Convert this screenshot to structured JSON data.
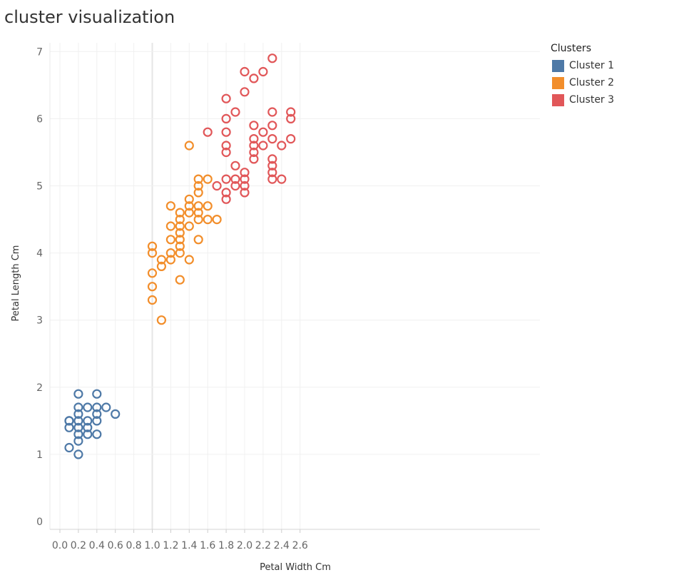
{
  "chart_data": {
    "type": "scatter",
    "title": "cluster visualization",
    "xlabel": "Petal Width Cm",
    "ylabel": "Petal Length Cm",
    "xlim": [
      -0.05,
      2.65
    ],
    "ylim": [
      -0.05,
      7.3
    ],
    "xticks": [
      "0.0",
      "0.2",
      "0.4",
      "0.6",
      "0.8",
      "1.0",
      "1.2",
      "1.4",
      "1.6",
      "1.8",
      "2.0",
      "2.2",
      "2.4",
      "2.6"
    ],
    "xtick_values": [
      0.0,
      0.2,
      0.4,
      0.6,
      0.8,
      1.0,
      1.2,
      1.4,
      1.6,
      1.8,
      2.0,
      2.2,
      2.4,
      2.6
    ],
    "yticks": [
      "0",
      "1",
      "2",
      "3",
      "4",
      "5",
      "6",
      "7"
    ],
    "ytick_values": [
      0,
      1,
      2,
      3,
      4,
      5,
      6,
      7
    ],
    "grid": true,
    "marker": "hollow-circle",
    "legend_title": "Clusters",
    "legend_position": "top-right",
    "series": [
      {
        "name": "Cluster 1",
        "color": "#4e79a7",
        "points": [
          [
            0.1,
            1.5
          ],
          [
            0.1,
            1.4
          ],
          [
            0.1,
            1.1
          ],
          [
            0.1,
            1.5
          ],
          [
            0.2,
            1.9
          ],
          [
            0.2,
            1.7
          ],
          [
            0.2,
            1.6
          ],
          [
            0.2,
            1.5
          ],
          [
            0.2,
            1.4
          ],
          [
            0.2,
            1.3
          ],
          [
            0.2,
            1.2
          ],
          [
            0.2,
            1.0
          ],
          [
            0.3,
            1.7
          ],
          [
            0.3,
            1.5
          ],
          [
            0.3,
            1.4
          ],
          [
            0.3,
            1.3
          ],
          [
            0.4,
            1.9
          ],
          [
            0.4,
            1.7
          ],
          [
            0.4,
            1.6
          ],
          [
            0.4,
            1.5
          ],
          [
            0.4,
            1.3
          ],
          [
            0.5,
            1.7
          ],
          [
            0.6,
            1.6
          ]
        ]
      },
      {
        "name": "Cluster 2",
        "color": "#f28e2b",
        "points": [
          [
            1.0,
            4.1
          ],
          [
            1.0,
            4.0
          ],
          [
            1.0,
            3.7
          ],
          [
            1.0,
            3.5
          ],
          [
            1.0,
            3.3
          ],
          [
            1.1,
            3.9
          ],
          [
            1.1,
            3.8
          ],
          [
            1.1,
            3.0
          ],
          [
            1.2,
            4.7
          ],
          [
            1.2,
            4.4
          ],
          [
            1.2,
            4.2
          ],
          [
            1.2,
            4.0
          ],
          [
            1.2,
            3.9
          ],
          [
            1.3,
            4.6
          ],
          [
            1.3,
            4.5
          ],
          [
            1.3,
            4.4
          ],
          [
            1.3,
            4.3
          ],
          [
            1.3,
            4.2
          ],
          [
            1.3,
            4.1
          ],
          [
            1.3,
            4.0
          ],
          [
            1.3,
            3.6
          ],
          [
            1.4,
            5.6
          ],
          [
            1.4,
            4.8
          ],
          [
            1.4,
            4.7
          ],
          [
            1.4,
            4.6
          ],
          [
            1.4,
            4.4
          ],
          [
            1.4,
            3.9
          ],
          [
            1.5,
            5.1
          ],
          [
            1.5,
            5.0
          ],
          [
            1.5,
            4.9
          ],
          [
            1.5,
            4.7
          ],
          [
            1.5,
            4.6
          ],
          [
            1.5,
            4.5
          ],
          [
            1.5,
            4.2
          ],
          [
            1.6,
            5.1
          ],
          [
            1.6,
            4.7
          ],
          [
            1.6,
            4.5
          ],
          [
            1.7,
            4.5
          ]
        ]
      },
      {
        "name": "Cluster 3",
        "color": "#e15759",
        "points": [
          [
            1.6,
            5.8
          ],
          [
            1.7,
            5.0
          ],
          [
            1.8,
            6.3
          ],
          [
            1.8,
            6.0
          ],
          [
            1.8,
            5.8
          ],
          [
            1.8,
            5.6
          ],
          [
            1.8,
            5.5
          ],
          [
            1.8,
            5.1
          ],
          [
            1.8,
            4.9
          ],
          [
            1.8,
            4.8
          ],
          [
            1.9,
            6.1
          ],
          [
            1.9,
            5.3
          ],
          [
            1.9,
            5.1
          ],
          [
            1.9,
            5.0
          ],
          [
            2.0,
            6.7
          ],
          [
            2.0,
            6.4
          ],
          [
            2.0,
            5.2
          ],
          [
            2.0,
            5.1
          ],
          [
            2.0,
            5.0
          ],
          [
            2.0,
            4.9
          ],
          [
            2.1,
            6.6
          ],
          [
            2.1,
            5.9
          ],
          [
            2.1,
            5.7
          ],
          [
            2.1,
            5.6
          ],
          [
            2.1,
            5.5
          ],
          [
            2.1,
            5.4
          ],
          [
            2.2,
            6.7
          ],
          [
            2.2,
            5.8
          ],
          [
            2.2,
            5.6
          ],
          [
            2.3,
            6.9
          ],
          [
            2.3,
            6.1
          ],
          [
            2.3,
            5.9
          ],
          [
            2.3,
            5.7
          ],
          [
            2.3,
            5.4
          ],
          [
            2.3,
            5.3
          ],
          [
            2.3,
            5.2
          ],
          [
            2.3,
            5.1
          ],
          [
            2.4,
            5.6
          ],
          [
            2.4,
            5.1
          ],
          [
            2.5,
            6.1
          ],
          [
            2.5,
            6.0
          ],
          [
            2.5,
            5.7
          ]
        ]
      }
    ]
  }
}
